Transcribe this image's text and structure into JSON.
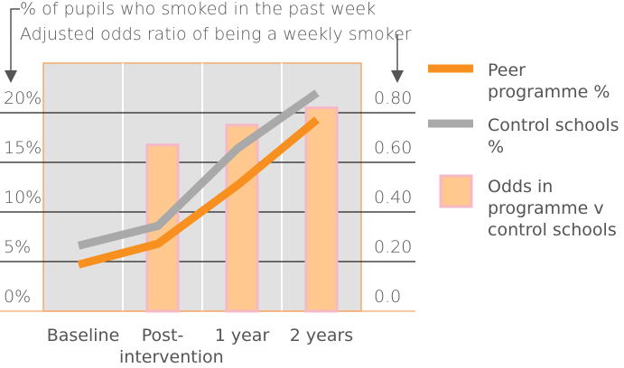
{
  "chart_data": {
    "type": "line",
    "y_axis_label": "% of pupils who smoked in the past week",
    "y2_axis_label": "Adjusted odds ratio of being a weekly smoker",
    "categories": [
      "Baseline",
      "Post-intervention",
      "1 year",
      "2 years"
    ],
    "ylim": [
      0,
      25
    ],
    "yticks": [
      {
        "value": 0,
        "label": "0%"
      },
      {
        "value": 5,
        "label": "5%"
      },
      {
        "value": 10,
        "label": "10%"
      },
      {
        "value": 15,
        "label": "15%"
      },
      {
        "value": 20,
        "label": "20%"
      }
    ],
    "y2lim": [
      0,
      1.0
    ],
    "y2ticks": [
      {
        "value": 0,
        "label": "0.0"
      },
      {
        "value": 0.2,
        "label": "0.20"
      },
      {
        "value": 0.4,
        "label": "0.40"
      },
      {
        "value": 0.6,
        "label": "0.60"
      },
      {
        "value": 0.8,
        "label": "0.80"
      }
    ],
    "grid": true,
    "series": [
      {
        "name": "Odds  in programme v control schools",
        "type": "bar",
        "axis": "y2",
        "color": "#ffc88f",
        "values": [
          null,
          0.67,
          0.75,
          0.82
        ]
      },
      {
        "name": "Control schools %",
        "type": "line",
        "color": "#a9a9a9",
        "values": [
          6.6,
          8.6,
          16.4,
          22.0
        ]
      },
      {
        "name": "Peer programme %",
        "type": "line",
        "color": "#f7901e",
        "values": [
          4.7,
          6.8,
          12.7,
          19.3
        ]
      }
    ]
  }
}
